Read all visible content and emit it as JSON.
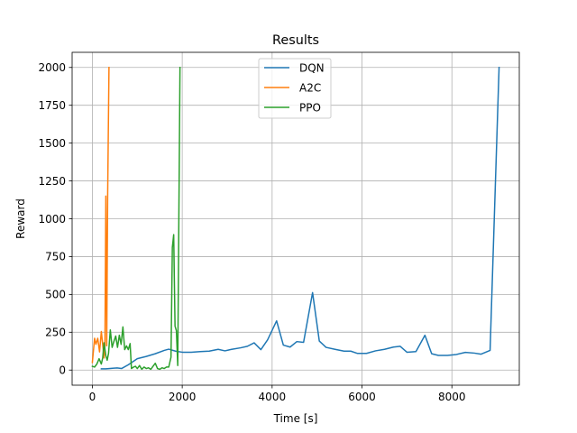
{
  "chart_data": {
    "type": "line",
    "title": "Results",
    "xlabel": "Time [s]",
    "ylabel": "Reward",
    "xlim": [
      -450,
      9500
    ],
    "ylim": [
      -100,
      2100
    ],
    "xticks": [
      0,
      2000,
      4000,
      6000,
      8000
    ],
    "yticks": [
      0,
      250,
      500,
      750,
      1000,
      1250,
      1500,
      1750,
      2000
    ],
    "grid": true,
    "legend": "top-center",
    "series": [
      {
        "name": "DQN",
        "color": "#1f77b4",
        "points": [
          [
            200,
            8
          ],
          [
            300,
            8
          ],
          [
            450,
            12
          ],
          [
            550,
            14
          ],
          [
            650,
            10
          ],
          [
            800,
            35
          ],
          [
            1000,
            75
          ],
          [
            1200,
            90
          ],
          [
            1400,
            108
          ],
          [
            1600,
            130
          ],
          [
            1700,
            138
          ],
          [
            1850,
            125
          ],
          [
            2000,
            118
          ],
          [
            2200,
            118
          ],
          [
            2400,
            122
          ],
          [
            2600,
            125
          ],
          [
            2800,
            137
          ],
          [
            2950,
            127
          ],
          [
            3100,
            137
          ],
          [
            3300,
            147
          ],
          [
            3450,
            157
          ],
          [
            3600,
            180
          ],
          [
            3750,
            135
          ],
          [
            3900,
            200
          ],
          [
            4100,
            325
          ],
          [
            4250,
            165
          ],
          [
            4400,
            152
          ],
          [
            4550,
            188
          ],
          [
            4700,
            183
          ],
          [
            4900,
            512
          ],
          [
            5050,
            192
          ],
          [
            5200,
            150
          ],
          [
            5400,
            137
          ],
          [
            5600,
            125
          ],
          [
            5750,
            125
          ],
          [
            5900,
            110
          ],
          [
            6100,
            110
          ],
          [
            6300,
            127
          ],
          [
            6500,
            137
          ],
          [
            6700,
            152
          ],
          [
            6850,
            157
          ],
          [
            7000,
            118
          ],
          [
            7200,
            122
          ],
          [
            7400,
            230
          ],
          [
            7550,
            108
          ],
          [
            7700,
            97
          ],
          [
            7900,
            97
          ],
          [
            8100,
            103
          ],
          [
            8300,
            117
          ],
          [
            8500,
            112
          ],
          [
            8650,
            105
          ],
          [
            8850,
            130
          ],
          [
            9050,
            2000
          ]
        ]
      },
      {
        "name": "A2C",
        "color": "#ff7f0e",
        "points": [
          [
            0,
            50
          ],
          [
            50,
            210
          ],
          [
            80,
            170
          ],
          [
            120,
            210
          ],
          [
            160,
            120
          ],
          [
            200,
            255
          ],
          [
            240,
            140
          ],
          [
            260,
            80
          ],
          [
            280,
            170
          ],
          [
            300,
            1150
          ],
          [
            320,
            160
          ],
          [
            340,
            1130
          ],
          [
            370,
            2000
          ]
        ]
      },
      {
        "name": "PPO",
        "color": "#2ca02c",
        "points": [
          [
            0,
            25
          ],
          [
            50,
            20
          ],
          [
            100,
            40
          ],
          [
            150,
            75
          ],
          [
            200,
            40
          ],
          [
            230,
            80
          ],
          [
            260,
            180
          ],
          [
            300,
            95
          ],
          [
            330,
            65
          ],
          [
            360,
            110
          ],
          [
            400,
            265
          ],
          [
            440,
            150
          ],
          [
            480,
            190
          ],
          [
            520,
            225
          ],
          [
            560,
            150
          ],
          [
            600,
            230
          ],
          [
            640,
            170
          ],
          [
            680,
            285
          ],
          [
            720,
            135
          ],
          [
            760,
            160
          ],
          [
            800,
            135
          ],
          [
            840,
            175
          ],
          [
            870,
            10
          ],
          [
            920,
            20
          ],
          [
            960,
            25
          ],
          [
            1000,
            10
          ],
          [
            1050,
            30
          ],
          [
            1100,
            5
          ],
          [
            1150,
            20
          ],
          [
            1200,
            10
          ],
          [
            1250,
            15
          ],
          [
            1300,
            5
          ],
          [
            1350,
            25
          ],
          [
            1400,
            45
          ],
          [
            1450,
            10
          ],
          [
            1500,
            5
          ],
          [
            1550,
            15
          ],
          [
            1600,
            10
          ],
          [
            1650,
            20
          ],
          [
            1700,
            20
          ],
          [
            1750,
            85
          ],
          [
            1780,
            810
          ],
          [
            1810,
            895
          ],
          [
            1840,
            290
          ],
          [
            1870,
            260
          ],
          [
            1900,
            30
          ],
          [
            1950,
            2000
          ]
        ]
      }
    ]
  }
}
